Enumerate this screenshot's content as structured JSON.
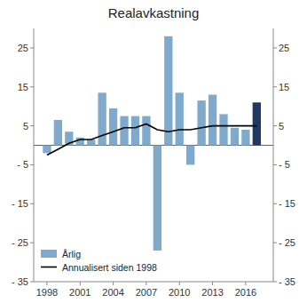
{
  "chart_data": {
    "type": "bar",
    "title": "Realavkastning",
    "x": [
      1998,
      1999,
      2000,
      2001,
      2002,
      2003,
      2004,
      2005,
      2006,
      2007,
      2008,
      2009,
      2010,
      2011,
      2012,
      2013,
      2014,
      2015,
      2016,
      2017
    ],
    "series": [
      {
        "name": "Årlig",
        "type": "bar",
        "color": "#7faacc",
        "colors": [
          "#7faacc",
          "#7faacc",
          "#7faacc",
          "#7faacc",
          "#7faacc",
          "#7faacc",
          "#7faacc",
          "#7faacc",
          "#7faacc",
          "#7faacc",
          "#7faacc",
          "#7faacc",
          "#7faacc",
          "#7faacc",
          "#7faacc",
          "#7faacc",
          "#7faacc",
          "#7faacc",
          "#7faacc",
          "#1f3864"
        ],
        "values": [
          -2.0,
          6.5,
          3.5,
          2.0,
          1.5,
          13.5,
          9.5,
          7.5,
          7.5,
          7.5,
          -27.0,
          28.0,
          13.5,
          -5.0,
          11.5,
          13.0,
          8.0,
          4.5,
          4.0,
          11.0
        ]
      },
      {
        "name": "Annualisert siden 1998",
        "type": "line",
        "color": "#000000",
        "values": [
          -2.5,
          -1.0,
          0.5,
          1.5,
          1.5,
          2.5,
          3.5,
          4.5,
          4.5,
          5.5,
          4.0,
          3.5,
          4.0,
          4.0,
          4.5,
          5.0,
          5.0,
          5.0,
          5.0,
          5.0
        ]
      }
    ],
    "xlim": [
      1996.8,
      2018.5
    ],
    "xticks": [
      1998,
      2001,
      2004,
      2007,
      2010,
      2013,
      2016
    ],
    "ylim": [
      -35,
      30
    ],
    "yticks": [
      {
        "value": -35,
        "label": "- 35"
      },
      {
        "value": -25,
        "label": "- 25"
      },
      {
        "value": -15,
        "label": "- 15"
      },
      {
        "value": -5,
        "label": "- 5"
      },
      5,
      15,
      25
    ],
    "y2lim": [
      -35,
      30
    ],
    "y2ticks": [
      {
        "value": -35,
        "label": "- 35"
      },
      {
        "value": -25,
        "label": "- 25"
      },
      {
        "value": -15,
        "label": "- 15"
      },
      {
        "value": -5,
        "label": "- 5"
      },
      5,
      15,
      25
    ],
    "grid": false,
    "legend": "lower left"
  }
}
